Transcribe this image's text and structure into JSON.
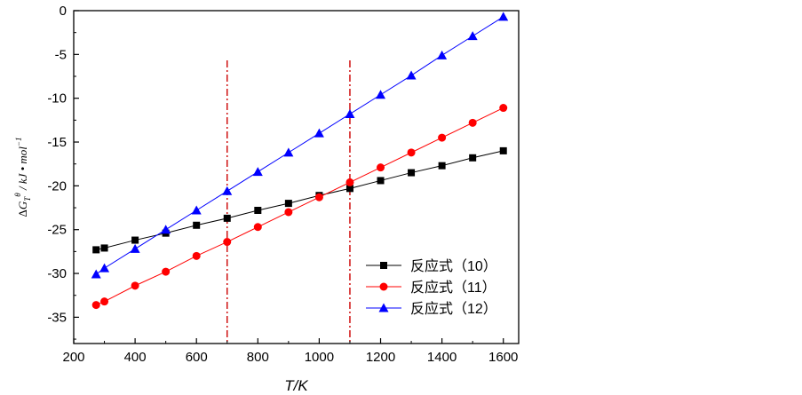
{
  "chart_data": {
    "type": "line",
    "xlabel": "T/K",
    "ylabel": {
      "delta": "Δ",
      "G": "G",
      "sub": "T",
      "sup": "θ",
      "unit": " / kJ • mol",
      "unit_sup": "−1"
    },
    "xlim": [
      200,
      1650
    ],
    "ylim": [
      -38,
      0
    ],
    "xticks": [
      200,
      400,
      600,
      800,
      1000,
      1200,
      1400,
      1600
    ],
    "yticks": [
      0,
      -5,
      -10,
      -15,
      -20,
      -25,
      -30,
      -35
    ],
    "x": [
      273,
      300,
      400,
      500,
      600,
      700,
      800,
      900,
      1000,
      1100,
      1200,
      1300,
      1400,
      1500,
      1600
    ],
    "series": [
      {
        "name": "反应式（10）",
        "color": "#000000",
        "marker": "square",
        "values": [
          -27.3,
          -27.1,
          -26.2,
          -25.4,
          -24.5,
          -23.7,
          -22.8,
          -22.0,
          -21.1,
          -20.3,
          -19.4,
          -18.5,
          -17.7,
          -16.8,
          -16.0
        ]
      },
      {
        "name": "反应式（11）",
        "color": "#ff0000",
        "marker": "circle",
        "values": [
          -33.6,
          -33.2,
          -31.4,
          -29.8,
          -28.0,
          -26.4,
          -24.7,
          -23.0,
          -21.3,
          -19.6,
          -17.9,
          -16.2,
          -14.5,
          -12.8,
          -11.1
        ]
      },
      {
        "name": "反应式（12）",
        "color": "#0000ff",
        "marker": "triangle",
        "values": [
          -30.1,
          -29.4,
          -27.2,
          -25.0,
          -22.8,
          -20.6,
          -18.4,
          -16.2,
          -14.0,
          -11.8,
          -9.6,
          -7.4,
          -5.1,
          -2.9,
          -0.7
        ]
      }
    ],
    "vlines": [
      700,
      1100
    ],
    "vline_color": "#cc0000",
    "legend_position": "bottom-right"
  }
}
